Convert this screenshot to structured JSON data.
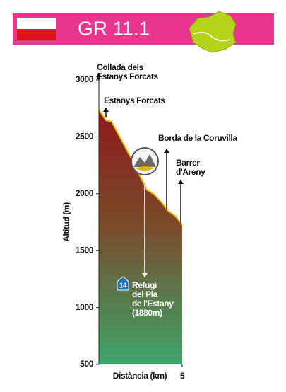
{
  "chart_data": {
    "type": "area",
    "title": "GR 11.1",
    "x": [
      0,
      0.42,
      0.76,
      1.91,
      2.54,
      2.88,
      3.31,
      3.73,
      4.15,
      4.58,
      5
    ],
    "values": [
      2740,
      2645,
      2635,
      2320,
      2135,
      2035,
      1995,
      1930,
      1850,
      1805,
      1725
    ],
    "xlim": [
      0,
      5
    ],
    "xticks": [
      5
    ],
    "ylim": [
      500,
      3000
    ],
    "yticks": [
      500,
      1000,
      1500,
      2000,
      2500,
      3000
    ],
    "xlabel": "Distància (km)",
    "ylabel": "Altitud (m)",
    "line_color": "#f2b705",
    "annotations": [
      {
        "lines": [
          "Collada dels",
          "Estanys Forcats"
        ]
      },
      {
        "lines": [
          "Estanys Forcats"
        ]
      },
      {
        "lines": [
          "Borda de la Coruvilla"
        ]
      },
      {
        "lines": [
          "Barrer",
          "d'Areny"
        ]
      },
      {
        "icon": "14",
        "lines": [
          "Refugi",
          "del Pla",
          "de l'Estany",
          "(1880m)"
        ]
      }
    ]
  }
}
